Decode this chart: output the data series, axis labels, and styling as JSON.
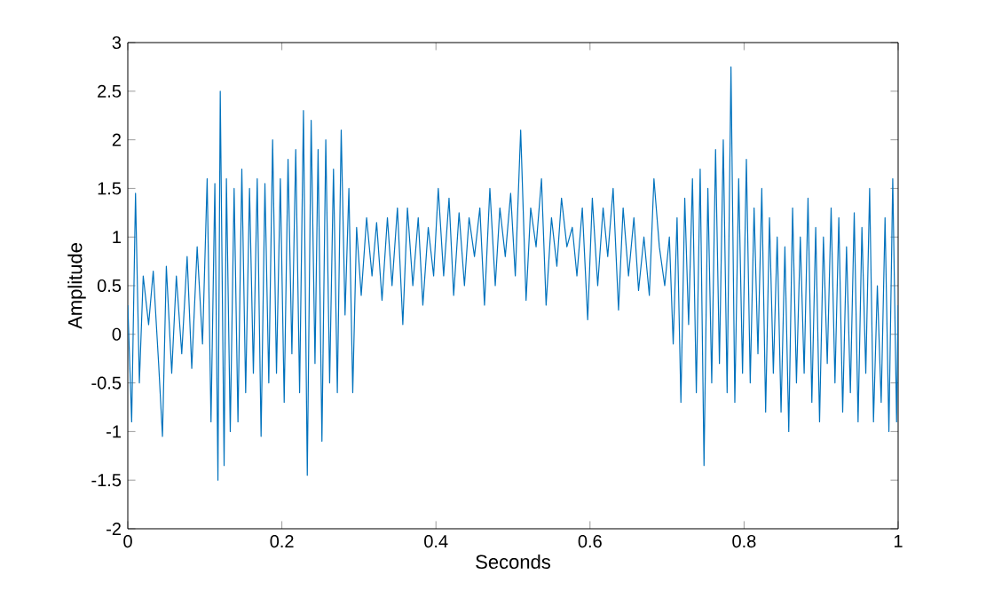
{
  "chart_data": {
    "type": "line",
    "xlabel": "Seconds",
    "ylabel": "Amplitude",
    "xlim": [
      0,
      1
    ],
    "ylim": [
      -2,
      3
    ],
    "xticks": [
      0,
      0.2,
      0.4,
      0.6,
      0.8,
      1
    ],
    "yticks": [
      -2,
      -1.5,
      -1,
      -0.5,
      0,
      0.5,
      1,
      1.5,
      2,
      2.5,
      3
    ],
    "grid": false,
    "series": [
      {
        "color": "#0072bd",
        "x": [
          0,
          0.005,
          0.01,
          0.015,
          0.02,
          0.027,
          0.033,
          0.04,
          0.045,
          0.05,
          0.057,
          0.063,
          0.07,
          0.077,
          0.083,
          0.09,
          0.097,
          0.103,
          0.108,
          0.113,
          0.117,
          0.12,
          0.125,
          0.128,
          0.133,
          0.138,
          0.143,
          0.148,
          0.153,
          0.158,
          0.163,
          0.168,
          0.173,
          0.178,
          0.183,
          0.188,
          0.193,
          0.198,
          0.203,
          0.208,
          0.213,
          0.218,
          0.223,
          0.228,
          0.233,
          0.238,
          0.243,
          0.247,
          0.252,
          0.257,
          0.262,
          0.267,
          0.272,
          0.277,
          0.282,
          0.287,
          0.292,
          0.297,
          0.303,
          0.31,
          0.317,
          0.323,
          0.33,
          0.337,
          0.343,
          0.35,
          0.357,
          0.363,
          0.37,
          0.377,
          0.383,
          0.39,
          0.397,
          0.403,
          0.41,
          0.417,
          0.423,
          0.43,
          0.437,
          0.443,
          0.45,
          0.457,
          0.463,
          0.47,
          0.477,
          0.483,
          0.49,
          0.497,
          0.503,
          0.51,
          0.517,
          0.523,
          0.53,
          0.537,
          0.543,
          0.55,
          0.557,
          0.563,
          0.57,
          0.577,
          0.583,
          0.59,
          0.597,
          0.603,
          0.61,
          0.617,
          0.623,
          0.63,
          0.637,
          0.643,
          0.65,
          0.657,
          0.663,
          0.67,
          0.677,
          0.683,
          0.69,
          0.697,
          0.703,
          0.708,
          0.713,
          0.718,
          0.723,
          0.728,
          0.733,
          0.738,
          0.743,
          0.748,
          0.753,
          0.758,
          0.763,
          0.768,
          0.773,
          0.778,
          0.783,
          0.788,
          0.793,
          0.798,
          0.803,
          0.808,
          0.813,
          0.818,
          0.823,
          0.828,
          0.833,
          0.838,
          0.843,
          0.848,
          0.853,
          0.858,
          0.863,
          0.868,
          0.873,
          0.878,
          0.883,
          0.888,
          0.893,
          0.898,
          0.903,
          0.908,
          0.913,
          0.918,
          0.923,
          0.928,
          0.933,
          0.938,
          0.943,
          0.948,
          0.953,
          0.958,
          0.963,
          0.968,
          0.973,
          0.978,
          0.983,
          0.988,
          0.993,
          0.998,
          1
        ],
        "values": [
          0.3,
          -0.9,
          1.45,
          -0.5,
          0.6,
          0.1,
          0.65,
          -0.3,
          -1.05,
          0.7,
          -0.4,
          0.6,
          -0.2,
          0.8,
          -0.35,
          0.9,
          -0.1,
          1.6,
          -0.9,
          1.55,
          -1.5,
          2.5,
          -1.35,
          1.6,
          -1.0,
          1.5,
          -0.9,
          1.7,
          -0.6,
          1.5,
          -0.4,
          1.6,
          -1.05,
          1.55,
          -0.5,
          2.0,
          -0.4,
          1.6,
          -0.7,
          1.8,
          -0.2,
          1.9,
          -0.6,
          2.3,
          -1.45,
          2.2,
          -0.3,
          1.9,
          -1.1,
          2.0,
          -0.5,
          1.7,
          -0.6,
          2.1,
          0.2,
          1.5,
          -0.6,
          1.1,
          0.4,
          1.2,
          0.6,
          1.15,
          0.35,
          1.2,
          0.5,
          1.3,
          0.1,
          1.3,
          0.5,
          1.2,
          0.3,
          1.1,
          0.6,
          1.5,
          0.6,
          1.4,
          0.4,
          1.25,
          0.5,
          1.2,
          0.8,
          1.3,
          0.3,
          1.5,
          0.5,
          1.3,
          0.8,
          1.45,
          0.6,
          2.1,
          0.35,
          1.3,
          0.9,
          1.6,
          0.3,
          1.2,
          0.7,
          1.4,
          0.9,
          1.1,
          0.6,
          1.3,
          0.15,
          1.4,
          0.5,
          1.3,
          0.8,
          1.5,
          0.25,
          1.3,
          0.6,
          1.2,
          0.45,
          1.0,
          0.4,
          1.6,
          0.9,
          0.5,
          1.0,
          -0.1,
          1.2,
          -0.7,
          1.4,
          0.1,
          1.6,
          -0.6,
          1.7,
          -1.35,
          1.5,
          -0.5,
          1.9,
          -0.3,
          2.0,
          -0.6,
          2.75,
          -0.7,
          1.6,
          -0.4,
          1.8,
          -0.5,
          1.3,
          -0.2,
          1.5,
          -0.8,
          1.2,
          -0.4,
          1.0,
          -0.8,
          0.9,
          -1.0,
          1.3,
          -0.5,
          1.0,
          -0.4,
          1.4,
          -0.7,
          1.1,
          -0.9,
          1.0,
          -0.3,
          1.3,
          -0.5,
          1.2,
          -0.8,
          0.9,
          -0.6,
          1.25,
          -0.9,
          1.1,
          -0.4,
          1.5,
          -0.9,
          0.5,
          -0.7,
          1.2,
          -1.0,
          1.6,
          -0.9,
          0.3
        ]
      }
    ]
  }
}
